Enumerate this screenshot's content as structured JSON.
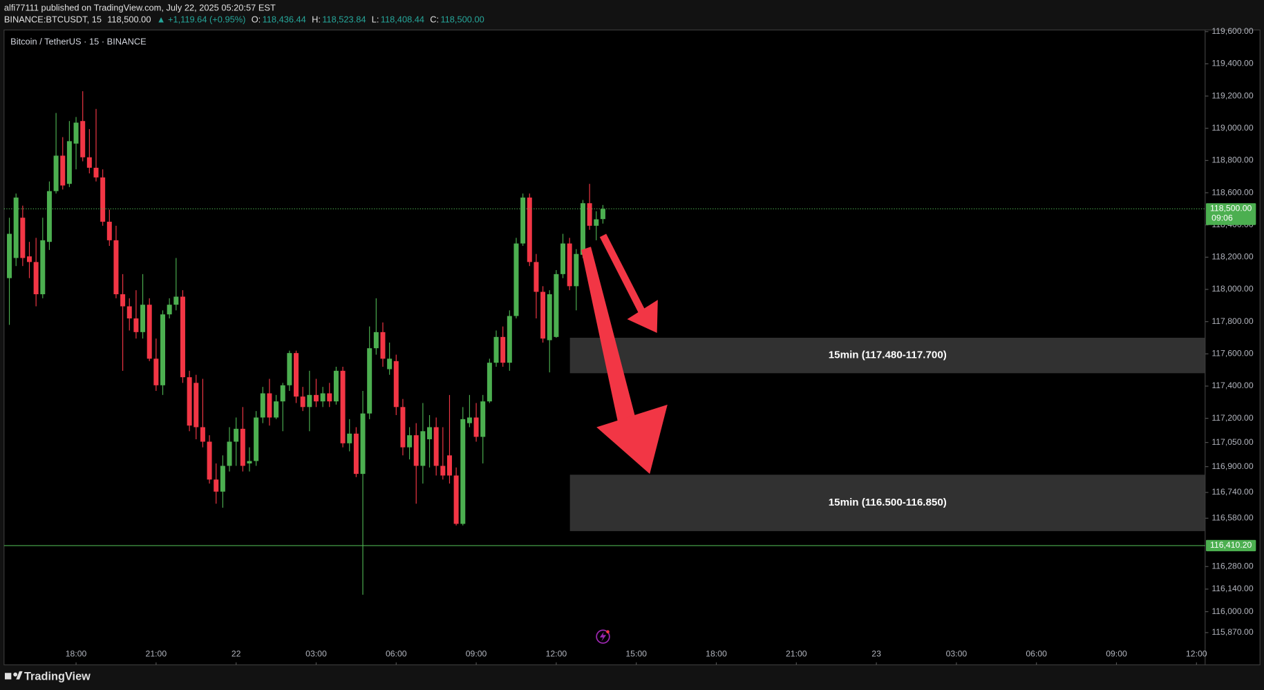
{
  "header": {
    "published": "alfi77111 published on TradingView.com, July 22, 2025 05:20:57 EST",
    "symbol": "BINANCE:BTCUSDT, 15",
    "last": "118,500.00",
    "change": "▲ +1,119.64 (+0.95%)",
    "ohlc": [
      {
        "key": "O:",
        "value": "118,436.44"
      },
      {
        "key": "H:",
        "value": "118,523.84"
      },
      {
        "key": "L:",
        "value": "118,408.44"
      },
      {
        "key": "C:",
        "value": "118,500.00"
      }
    ]
  },
  "footer": {
    "brand": "TradingView"
  },
  "chart_data": {
    "type": "candlestick",
    "title": "Bitcoin / TetherUS · 15 · BINANCE",
    "up_color": "#4caf50",
    "down_color": "#f23645",
    "grid": false,
    "ylim": [
      115700,
      119610
    ],
    "xlim": [
      -0.8,
      179.3
    ],
    "yticks": [
      {
        "value": 119600,
        "label": "119,600.00"
      },
      {
        "value": 119400,
        "label": "119,400.00"
      },
      {
        "value": 119200,
        "label": "119,200.00"
      },
      {
        "value": 119000,
        "label": "119,000.00"
      },
      {
        "value": 118800,
        "label": "118,800.00"
      },
      {
        "value": 118600,
        "label": "118,600.00"
      },
      {
        "value": 118400,
        "label": "118,400.00"
      },
      {
        "value": 118200,
        "label": "118,200.00"
      },
      {
        "value": 118000,
        "label": "118,000.00"
      },
      {
        "value": 117800,
        "label": "117,800.00"
      },
      {
        "value": 117600,
        "label": "117,600.00"
      },
      {
        "value": 117400,
        "label": "117,400.00"
      },
      {
        "value": 117200,
        "label": "117,200.00"
      },
      {
        "value": 117050,
        "label": "117,050.00"
      },
      {
        "value": 116900,
        "label": "116,900.00"
      },
      {
        "value": 116740,
        "label": "116,740.00"
      },
      {
        "value": 116580,
        "label": "116,580.00"
      },
      {
        "value": 116280,
        "label": "116,280.00"
      },
      {
        "value": 116140,
        "label": "116,140.00"
      },
      {
        "value": 116000,
        "label": "116,000.00"
      },
      {
        "value": 115870,
        "label": "115,870.00"
      }
    ],
    "xticks": [
      {
        "value": 10,
        "label": "18:00"
      },
      {
        "value": 22,
        "label": "21:00"
      },
      {
        "value": 34,
        "label": "22"
      },
      {
        "value": 46,
        "label": "03:00"
      },
      {
        "value": 58,
        "label": "06:00"
      },
      {
        "value": 70,
        "label": "09:00"
      },
      {
        "value": 82,
        "label": "12:00"
      },
      {
        "value": 94,
        "label": "15:00"
      },
      {
        "value": 106,
        "label": "18:00"
      },
      {
        "value": 118,
        "label": "21:00"
      },
      {
        "value": 130,
        "label": "23"
      },
      {
        "value": 142,
        "label": "03:00"
      },
      {
        "value": 154,
        "label": "06:00"
      },
      {
        "value": 166,
        "label": "09:00"
      },
      {
        "value": 178,
        "label": "12:00"
      }
    ],
    "candles": [
      [
        118070,
        118445,
        117780,
        118345
      ],
      [
        118195,
        118595,
        118145,
        118570
      ],
      [
        118445,
        118520,
        118145,
        118195
      ],
      [
        118205,
        118295,
        118070,
        118170
      ],
      [
        118170,
        118320,
        117895,
        117970
      ],
      [
        117970,
        118445,
        117945,
        118305
      ],
      [
        118295,
        118670,
        118245,
        118610
      ],
      [
        118610,
        119095,
        118595,
        118830
      ],
      [
        118830,
        118945,
        118620,
        118645
      ],
      [
        118655,
        119045,
        118635,
        118920
      ],
      [
        118905,
        119070,
        118745,
        119035
      ],
      [
        119045,
        119230,
        118795,
        118820
      ],
      [
        118820,
        118995,
        118720,
        118755
      ],
      [
        118755,
        119120,
        118670,
        118695
      ],
      [
        118695,
        118745,
        118395,
        118420
      ],
      [
        118420,
        118495,
        118270,
        118305
      ],
      [
        118305,
        118395,
        117945,
        117970
      ],
      [
        117970,
        118095,
        117495,
        117895
      ],
      [
        117895,
        117945,
        117745,
        117820
      ],
      [
        117820,
        117995,
        117695,
        117735
      ],
      [
        117735,
        118095,
        117695,
        117905
      ],
      [
        117905,
        117945,
        117555,
        117570
      ],
      [
        117570,
        117695,
        117370,
        117405
      ],
      [
        117405,
        117870,
        117345,
        117845
      ],
      [
        117845,
        117945,
        117820,
        117905
      ],
      [
        117905,
        118195,
        117870,
        117955
      ],
      [
        117955,
        117995,
        117420,
        117455
      ],
      [
        117455,
        117495,
        117120,
        117155
      ],
      [
        117420,
        117470,
        117070,
        117145
      ],
      [
        117145,
        117445,
        117020,
        117055
      ],
      [
        117055,
        117095,
        116795,
        116820
      ],
      [
        116820,
        116920,
        116670,
        116745
      ],
      [
        116745,
        116970,
        116645,
        116905
      ],
      [
        116905,
        117145,
        116870,
        117055
      ],
      [
        117055,
        117205,
        116905,
        117135
      ],
      [
        117135,
        117270,
        116870,
        116905
      ],
      [
        116920,
        117020,
        116870,
        116935
      ],
      [
        116935,
        117245,
        116905,
        117205
      ],
      [
        117205,
        117395,
        117170,
        117355
      ],
      [
        117355,
        117445,
        117155,
        117205
      ],
      [
        117205,
        117345,
        117195,
        117305
      ],
      [
        117305,
        117420,
        117120,
        117405
      ],
      [
        117405,
        117620,
        117370,
        117605
      ],
      [
        117605,
        117620,
        117295,
        117335
      ],
      [
        117335,
        117395,
        117245,
        117270
      ],
      [
        117270,
        117495,
        117120,
        117345
      ],
      [
        117345,
        117445,
        117270,
        117305
      ],
      [
        117305,
        117395,
        117270,
        117355
      ],
      [
        117355,
        117420,
        117270,
        117305
      ],
      [
        117305,
        117520,
        117285,
        117495
      ],
      [
        117495,
        117520,
        117020,
        117045
      ],
      [
        117045,
        117195,
        116995,
        117105
      ],
      [
        117105,
        117145,
        116835,
        116855
      ],
      [
        116855,
        117370,
        116105,
        117230
      ],
      [
        117230,
        117770,
        117195,
        117635
      ],
      [
        117635,
        117945,
        117595,
        117735
      ],
      [
        117735,
        117795,
        117520,
        117570
      ],
      [
        117505,
        117670,
        117470,
        117570
      ],
      [
        117555,
        117595,
        117220,
        117270
      ],
      [
        117270,
        117320,
        116970,
        117020
      ],
      [
        117020,
        117145,
        116945,
        117095
      ],
      [
        117095,
        117170,
        116670,
        116905
      ],
      [
        116905,
        117295,
        116795,
        117120
      ],
      [
        117070,
        117220,
        116895,
        117145
      ],
      [
        117145,
        117205,
        116845,
        116905
      ],
      [
        116905,
        117145,
        116820,
        116845
      ],
      [
        116970,
        117345,
        116795,
        116845
      ],
      [
        116845,
        116895,
        116535,
        116545
      ],
      [
        116545,
        117270,
        116535,
        117195
      ],
      [
        117170,
        117345,
        117145,
        117205
      ],
      [
        117205,
        117295,
        117055,
        117085
      ],
      [
        117085,
        117345,
        116920,
        117305
      ],
      [
        117305,
        117570,
        117295,
        117545
      ],
      [
        117545,
        117745,
        117520,
        117705
      ],
      [
        117705,
        117770,
        117520,
        117545
      ],
      [
        117545,
        117870,
        117495,
        117835
      ],
      [
        117835,
        118320,
        117820,
        118285
      ],
      [
        118285,
        118595,
        118270,
        118570
      ],
      [
        118570,
        118595,
        118145,
        118170
      ],
      [
        118170,
        118220,
        117820,
        117985
      ],
      [
        117985,
        118020,
        117670,
        117695
      ],
      [
        117685,
        117995,
        117485,
        117970
      ],
      [
        117705,
        118120,
        117700,
        118095
      ],
      [
        118095,
        118345,
        118070,
        118285
      ],
      [
        118285,
        118320,
        117995,
        118020
      ],
      [
        118020,
        118250,
        117870,
        118220
      ],
      [
        118215,
        118555,
        118195,
        118535
      ],
      [
        118535,
        118655,
        118370,
        118395
      ],
      [
        118395,
        118485,
        118305,
        118435
      ],
      [
        118436.44,
        118523.84,
        118408.44,
        118500
      ]
    ],
    "current": {
      "value": 118500,
      "label": "118,500.00",
      "countdown": "09:06",
      "color": "#4caf50"
    },
    "levels": [
      {
        "value": 116410.2,
        "label": "116,410.20",
        "color": "#4caf50"
      }
    ],
    "zones": [
      {
        "low": 117480,
        "high": 117700,
        "label": "15min (117.480-117.700)"
      },
      {
        "low": 116500,
        "high": 116850,
        "label": "15min (116.500-116.850)"
      }
    ]
  }
}
